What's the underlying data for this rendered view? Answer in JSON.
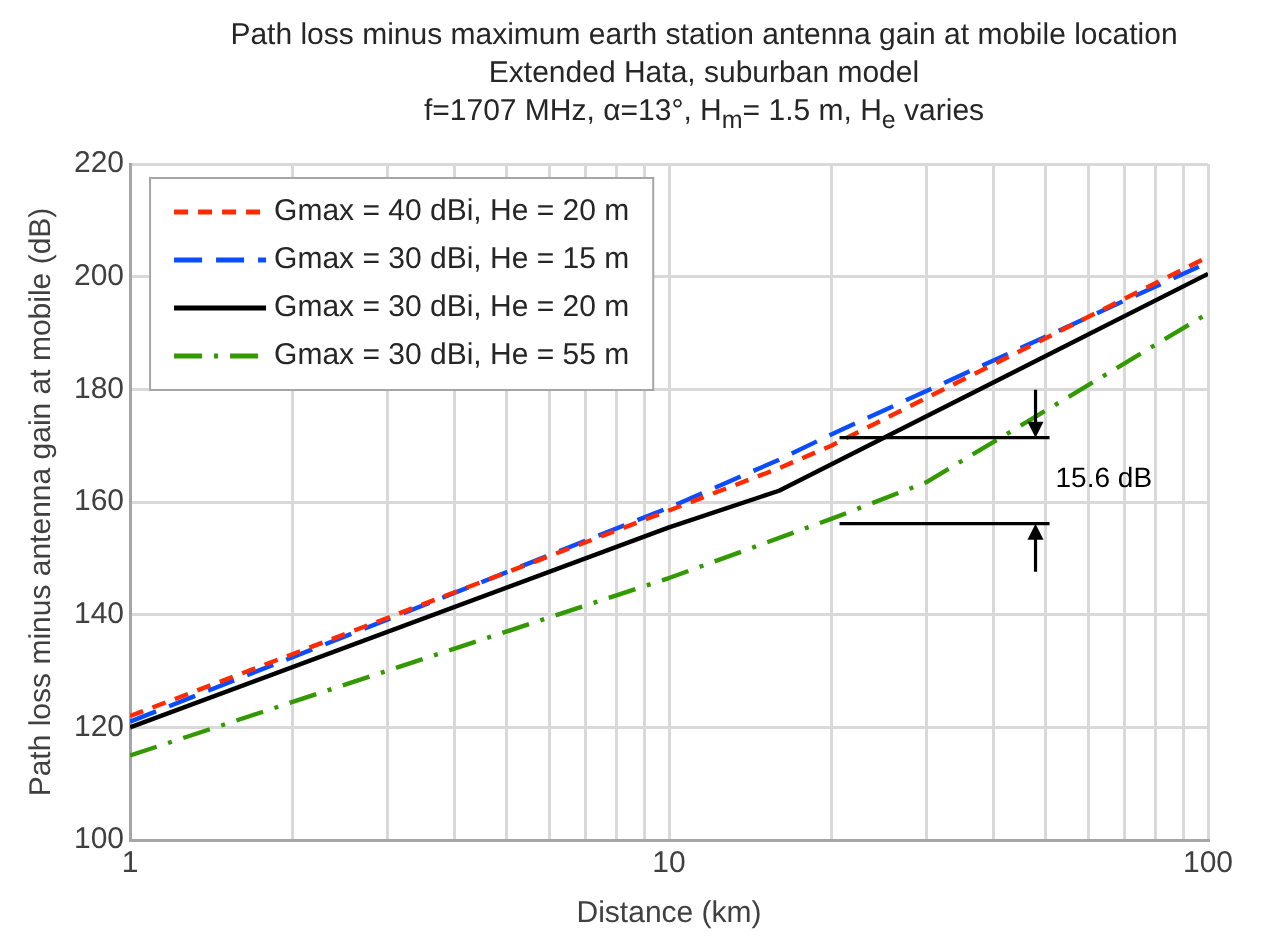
{
  "chart_data": {
    "type": "line",
    "title": "Path loss minus maximum earth station antenna gain at mobile location",
    "subtitle": "Extended Hata, suburban model\nf=1707 MHz, α=13°, H$_{m}$= 1.5 m, H$_{e}$ varies",
    "xlabel": "Distance (km)",
    "ylabel": "Path loss minus antenna gain at mobile (dB)",
    "log": "x",
    "xlim": [
      1,
      100
    ],
    "xticks": [
      1,
      {
        "value": 2,
        "label": null
      },
      {
        "value": 3,
        "label": null
      },
      {
        "value": 4,
        "label": null
      },
      {
        "value": 5,
        "label": null
      },
      {
        "value": 6,
        "label": null
      },
      {
        "value": 7,
        "label": null
      },
      {
        "value": 8,
        "label": null
      },
      {
        "value": 9,
        "label": null
      },
      10,
      {
        "value": 20,
        "label": null
      },
      {
        "value": 30,
        "label": null
      },
      {
        "value": 40,
        "label": null
      },
      {
        "value": 50,
        "label": null
      },
      {
        "value": 60,
        "label": null
      },
      {
        "value": 70,
        "label": null
      },
      {
        "value": 80,
        "label": null
      },
      {
        "value": 90,
        "label": null
      },
      100
    ],
    "ylim": [
      100,
      220
    ],
    "yticks": [
      100,
      120,
      140,
      160,
      180,
      200,
      220
    ],
    "grid": true,
    "legend": "top left",
    "marker": "none",
    "series": [
      {
        "name": "Gmax = 40 dBi, He = 20 m",
        "color": "#ff2a00",
        "line_style": "dashed",
        "x": [
          1,
          10,
          16,
          20,
          100
        ],
        "values": [
          122,
          158.5,
          166,
          170,
          203.5
        ]
      },
      {
        "name": "Gmax = 30 dBi, He = 15 m",
        "color": "#0a4cff",
        "line_style": "longdash",
        "x": [
          1,
          10,
          16,
          20,
          100
        ],
        "values": [
          121,
          159,
          167.5,
          172,
          202.5
        ]
      },
      {
        "name": "Gmax = 30 dBi, He = 20 m",
        "color": "#000000",
        "line_style": "solid",
        "x": [
          1,
          10,
          16,
          100
        ],
        "values": [
          120,
          155.5,
          162,
          200.5
        ]
      },
      {
        "name": "Gmax = 30 dBi, He = 55 m",
        "color": "#339900",
        "line_style": "dashdot",
        "x": [
          1,
          10,
          20,
          30,
          100
        ],
        "values": [
          115,
          146.5,
          157,
          163.5,
          193.5
        ]
      }
    ],
    "annotations": [
      "15.6 dB"
    ]
  }
}
